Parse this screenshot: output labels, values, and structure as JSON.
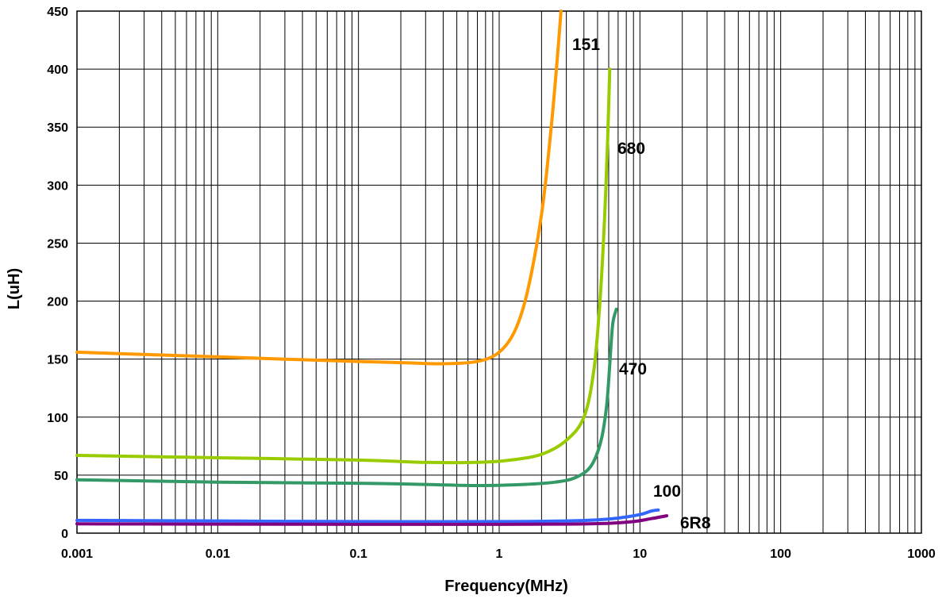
{
  "chart_data": {
    "type": "line",
    "title": "",
    "xlabel": "Frequency(MHz)",
    "ylabel": "L(uH)",
    "xscale": "log",
    "xlim": [
      0.001,
      1000
    ],
    "ylim": [
      0,
      450
    ],
    "grid": true,
    "legend": "none",
    "x_tick_labels": [
      "0.001",
      "0.01",
      "0.1",
      "1",
      "10",
      "100",
      "1000"
    ],
    "x_tick_values": [
      0.001,
      0.01,
      0.1,
      1,
      10,
      100,
      1000
    ],
    "y_tick_labels": [
      "0",
      "50",
      "100",
      "150",
      "200",
      "250",
      "300",
      "350",
      "400",
      "450"
    ],
    "y_tick_values": [
      0,
      50,
      100,
      150,
      200,
      250,
      300,
      350,
      400,
      450
    ],
    "series": [
      {
        "name": "151",
        "color": "#FF9900",
        "points": [
          [
            0.001,
            156
          ],
          [
            0.003,
            154
          ],
          [
            0.01,
            152
          ],
          [
            0.03,
            150
          ],
          [
            0.1,
            148
          ],
          [
            0.2,
            147
          ],
          [
            0.4,
            146
          ],
          [
            0.7,
            148
          ],
          [
            1.0,
            156
          ],
          [
            1.3,
            175
          ],
          [
            1.6,
            210
          ],
          [
            2.0,
            275
          ],
          [
            2.3,
            340
          ],
          [
            2.55,
            400
          ],
          [
            2.75,
            450
          ]
        ]
      },
      {
        "name": "680",
        "color": "#99CC00",
        "points": [
          [
            0.001,
            67
          ],
          [
            0.01,
            65
          ],
          [
            0.1,
            63
          ],
          [
            0.3,
            61
          ],
          [
            0.7,
            61
          ],
          [
            1.2,
            63
          ],
          [
            2.0,
            68
          ],
          [
            3.0,
            80
          ],
          [
            4.0,
            100
          ],
          [
            4.7,
            140
          ],
          [
            5.2,
            200
          ],
          [
            5.6,
            270
          ],
          [
            5.9,
            340
          ],
          [
            6.1,
            400
          ]
        ]
      },
      {
        "name": "470",
        "color": "#339966",
        "points": [
          [
            0.001,
            46
          ],
          [
            0.01,
            44
          ],
          [
            0.1,
            43
          ],
          [
            0.3,
            42
          ],
          [
            0.7,
            41
          ],
          [
            1.5,
            42
          ],
          [
            2.5,
            44
          ],
          [
            3.5,
            48
          ],
          [
            4.5,
            58
          ],
          [
            5.3,
            80
          ],
          [
            5.8,
            110
          ],
          [
            6.1,
            145
          ],
          [
            6.4,
            180
          ],
          [
            6.8,
            193
          ]
        ]
      },
      {
        "name": "100",
        "color": "#3366FF",
        "points": [
          [
            0.001,
            11
          ],
          [
            0.01,
            10.5
          ],
          [
            0.1,
            10
          ],
          [
            1,
            10
          ],
          [
            3,
            10.5
          ],
          [
            5,
            11.5
          ],
          [
            7,
            13
          ],
          [
            10,
            16
          ],
          [
            12,
            19
          ],
          [
            13.5,
            20
          ]
        ]
      },
      {
        "name": "6R8",
        "color": "#800080",
        "points": [
          [
            0.001,
            8
          ],
          [
            0.01,
            7.8
          ],
          [
            0.1,
            7.6
          ],
          [
            1,
            7.6
          ],
          [
            3,
            7.8
          ],
          [
            6,
            8.5
          ],
          [
            9,
            10
          ],
          [
            12,
            12.5
          ],
          [
            15.5,
            15
          ]
        ]
      }
    ],
    "annotations": [
      {
        "text": "151",
        "series": "151"
      },
      {
        "text": "680",
        "series": "680"
      },
      {
        "text": "470",
        "series": "470"
      },
      {
        "text": "100",
        "series": "100"
      },
      {
        "text": "6R8",
        "series": "6R8"
      }
    ]
  }
}
